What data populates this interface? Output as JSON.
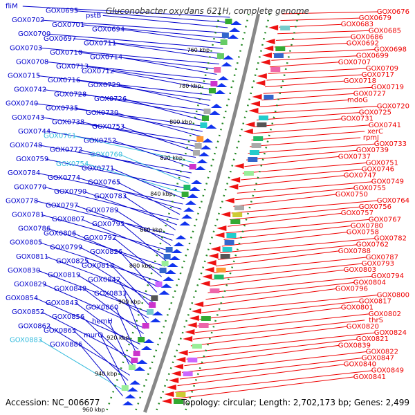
{
  "title": "Gluconobacter oxydans 621H, complete genome",
  "footer": {
    "accession": "Accession: NC_006677",
    "summary": "Topology: circular; Length: 2,702,173 bp; Genes: 2,499"
  },
  "colors": {
    "forward": "#0000cc",
    "reverse": "#ee0000",
    "highlight": "#33bbdd",
    "backbone": "#888888",
    "dots": "#228822"
  },
  "scale_labels": [
    "760 kbp",
    "780 kbp",
    "800 kbp",
    "820 kbp",
    "840 kbp",
    "860 kbp",
    "880 kbp",
    "900 kbp",
    "920 kbp",
    "940 kbp",
    "960 kbp"
  ],
  "left_labels": [
    {
      "text": "fliM",
      "hl": false
    },
    {
      "text": "GOX0695",
      "hl": false
    },
    {
      "text": "pstB",
      "hl": false
    },
    {
      "text": "GOX0702",
      "hl": false
    },
    {
      "text": "GOX0701",
      "hl": false
    },
    {
      "text": "GOX0694",
      "hl": false
    },
    {
      "text": "GOX0700",
      "hl": false
    },
    {
      "text": "GOX0697",
      "hl": false
    },
    {
      "text": "GOX0711",
      "hl": false
    },
    {
      "text": "GOX0703",
      "hl": false
    },
    {
      "text": "GOX0710",
      "hl": false
    },
    {
      "text": "GOX0714",
      "hl": false
    },
    {
      "text": "GOX0708",
      "hl": false
    },
    {
      "text": "GOX0713",
      "hl": false
    },
    {
      "text": "GOX0712",
      "hl": false
    },
    {
      "text": "GOX0715",
      "hl": false
    },
    {
      "text": "GOX0716",
      "hl": false
    },
    {
      "text": "GOX0729",
      "hl": false
    },
    {
      "text": "GOX0742",
      "hl": false
    },
    {
      "text": "GOX0728",
      "hl": false
    },
    {
      "text": "GOX0726",
      "hl": false
    },
    {
      "text": "GOX0740",
      "hl": false
    },
    {
      "text": "GOX0735",
      "hl": false
    },
    {
      "text": "GOX0730",
      "hl": false
    },
    {
      "text": "GOX0743",
      "hl": false
    },
    {
      "text": "GOX0738",
      "hl": false
    },
    {
      "text": "GOX0753",
      "hl": false
    },
    {
      "text": "GOX0744",
      "hl": false
    },
    {
      "text": "GOX0761",
      "hl": true
    },
    {
      "text": "GOX0752",
      "hl": false
    },
    {
      "text": "GOX0748",
      "hl": false
    },
    {
      "text": "GOX0772",
      "hl": false
    },
    {
      "text": "GOX0760",
      "hl": true
    },
    {
      "text": "GOX0759",
      "hl": false
    },
    {
      "text": "GOX0754",
      "hl": true
    },
    {
      "text": "GOX0771",
      "hl": false
    },
    {
      "text": "GOX0784",
      "hl": false
    },
    {
      "text": "GOX0774",
      "hl": false
    },
    {
      "text": "GOX0765",
      "hl": false
    },
    {
      "text": "GOX0770",
      "hl": false
    },
    {
      "text": "GOX0790",
      "hl": false
    },
    {
      "text": "GOX0783",
      "hl": false
    },
    {
      "text": "GOX0778",
      "hl": false
    },
    {
      "text": "GOX0797",
      "hl": false
    },
    {
      "text": "GOX0789",
      "hl": false
    },
    {
      "text": "GOX0781",
      "hl": false
    },
    {
      "text": "GOX0807",
      "hl": false
    },
    {
      "text": "GOX0795",
      "hl": false
    },
    {
      "text": "GOX0786",
      "hl": false
    },
    {
      "text": "GOX0806",
      "hl": false
    },
    {
      "text": "GOX0792",
      "hl": false
    },
    {
      "text": "GOX0805",
      "hl": false
    },
    {
      "text": "GOX0799",
      "hl": false
    },
    {
      "text": "GOX0826",
      "hl": false
    },
    {
      "text": "GOX0811",
      "hl": false
    },
    {
      "text": "GOX0825",
      "hl": false
    },
    {
      "text": "GOX0818",
      "hl": false
    },
    {
      "text": "GOX0830",
      "hl": false
    },
    {
      "text": "GOX0819",
      "hl": false
    },
    {
      "text": "GOX0842",
      "hl": false
    },
    {
      "text": "GOX0829",
      "hl": false
    },
    {
      "text": "GOX0848",
      "hl": false
    },
    {
      "text": "GOX0833",
      "hl": false
    },
    {
      "text": "GOX0854",
      "hl": false
    },
    {
      "text": "GOX0843",
      "hl": false
    },
    {
      "text": "GOX0860",
      "hl": false
    },
    {
      "text": "GOX0852",
      "hl": false
    },
    {
      "text": "GOX0856",
      "hl": false
    },
    {
      "text": "hemH",
      "hl": false
    },
    {
      "text": "GOX0862",
      "hl": false
    },
    {
      "text": "GOX0865",
      "hl": false
    },
    {
      "text": "murQ",
      "hl": false
    },
    {
      "text": "GOX0883",
      "hl": true
    },
    {
      "text": "GOX0886",
      "hl": false
    }
  ],
  "right_labels": [
    "GOX0676",
    "GOX0679",
    "GOX0683",
    "GOX0685",
    "GOX0686",
    "GOX0692",
    "GOX0698",
    "GOX0699",
    "GOX0707",
    "GOX0709",
    "GOX0717",
    "GOX0718",
    "GOX0719",
    "GOX0727",
    "mdoG",
    "GOX0720",
    "GOX0725",
    "GOX0731",
    "GOX0741",
    "xerC",
    "rpmJ",
    "GOX0733",
    "GOX0739",
    "GOX0737",
    "GOX0751",
    "GOX0746",
    "GOX0747",
    "GOX0749",
    "GOX0755",
    "GOX0750",
    "GOX0764",
    "GOX0756",
    "GOX0757",
    "GOX0767",
    "GOX0780",
    "GOX0758",
    "GOX0782",
    "GOX0762",
    "GOX0788",
    "GOX0787",
    "GOX0793",
    "GOX0803",
    "GOX0794",
    "GOX0804",
    "GOX0796",
    "GOX0800",
    "GOX0817",
    "GOX0801",
    "GOX0802",
    "thrS",
    "GOX0820",
    "GOX0824",
    "GOX0821",
    "GOX0839",
    "GOX0822",
    "GOX0847",
    "GOX0840",
    "GOX0849",
    "GOX0841"
  ]
}
